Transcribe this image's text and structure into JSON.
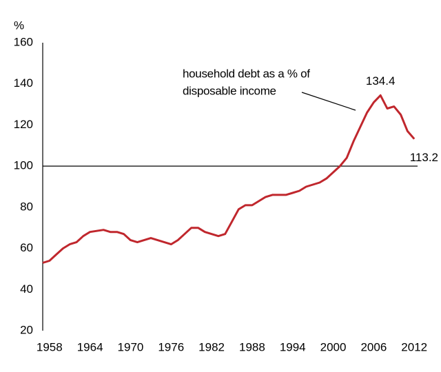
{
  "chart_data": {
    "type": "line",
    "y_label": "%",
    "annotation": [
      "household debt as a % of",
      "disposable income"
    ],
    "x": [
      1957,
      1958,
      1959,
      1960,
      1961,
      1962,
      1963,
      1964,
      1965,
      1966,
      1967,
      1968,
      1969,
      1970,
      1971,
      1972,
      1973,
      1974,
      1975,
      1976,
      1977,
      1978,
      1979,
      1980,
      1981,
      1982,
      1983,
      1984,
      1985,
      1986,
      1987,
      1988,
      1989,
      1990,
      1991,
      1992,
      1993,
      1994,
      1995,
      1996,
      1997,
      1998,
      1999,
      2000,
      2001,
      2002,
      2003,
      2004,
      2005,
      2006,
      2007,
      2008,
      2009,
      2010,
      2011,
      2012
    ],
    "series": [
      {
        "name": "household debt as a % of disposable income",
        "color": "#c0272d",
        "values": [
          53,
          54,
          57,
          60,
          62,
          63,
          66,
          68,
          68.5,
          69,
          68,
          68,
          67,
          64,
          63,
          64,
          65,
          64,
          63,
          62,
          64,
          67,
          70,
          70,
          68,
          67,
          66,
          67,
          73,
          79,
          81,
          81,
          83,
          85,
          86,
          86,
          86,
          87,
          88,
          90,
          91,
          92,
          94,
          97,
          100,
          104,
          112,
          119,
          126,
          131,
          134.4,
          128,
          129,
          125,
          117,
          113.2
        ]
      }
    ],
    "hline": 100,
    "xlim": [
      1957,
      2013
    ],
    "ylim": [
      20,
      160
    ],
    "xticks": [
      1958,
      1964,
      1970,
      1976,
      1982,
      1988,
      1994,
      2000,
      2006,
      2012
    ],
    "yticks": [
      20,
      40,
      60,
      80,
      100,
      120,
      140,
      160
    ]
  }
}
